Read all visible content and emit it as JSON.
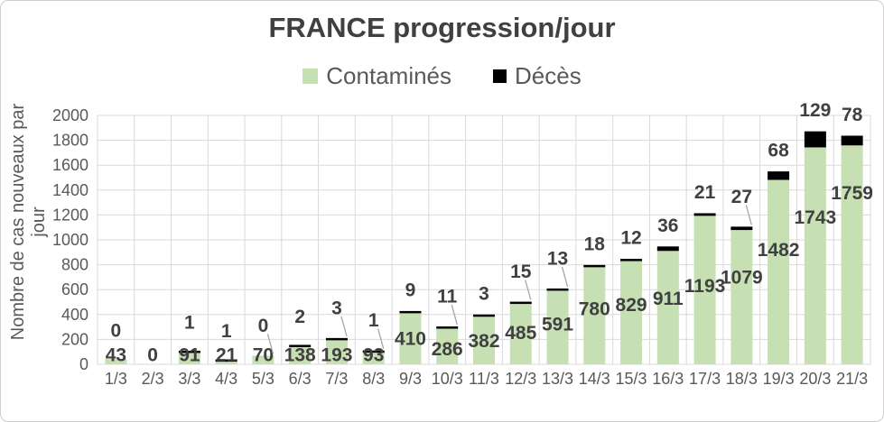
{
  "chart_data": {
    "type": "bar",
    "stacked": true,
    "title": "FRANCE progression/jour",
    "ylabel": "Nombre de cas nouveaux par jour",
    "xlabel": "",
    "ylim": [
      0,
      2000
    ],
    "ytick_step": 200,
    "grid": true,
    "legend_position": "top-center",
    "categories": [
      "1/3",
      "2/3",
      "3/3",
      "4/3",
      "5/3",
      "6/3",
      "7/3",
      "8/3",
      "9/3",
      "10/3",
      "11/3",
      "12/3",
      "13/3",
      "14/3",
      "15/3",
      "16/3",
      "17/3",
      "18/3",
      "19/3",
      "20/3",
      "21/3"
    ],
    "series": [
      {
        "name": "Contaminés",
        "color": "#c6e0b4",
        "values": [
          43,
          0,
          91,
          21,
          70,
          138,
          193,
          93,
          410,
          286,
          382,
          485,
          591,
          780,
          829,
          911,
          1193,
          1079,
          1482,
          1743,
          1759
        ]
      },
      {
        "name": "Décès",
        "color": "#000000",
        "values": [
          0,
          0,
          1,
          1,
          0,
          2,
          3,
          1,
          9,
          11,
          3,
          15,
          13,
          18,
          12,
          36,
          21,
          27,
          68,
          129,
          78
        ]
      }
    ],
    "label_leader_line_categories": [
      "5/3",
      "7/3",
      "8/3",
      "10/3",
      "12/3",
      "13/3",
      "18/3"
    ],
    "hidden_deces_label_categories": [
      "2/3"
    ]
  },
  "colors": {
    "background": "#ffffff",
    "frame_border": "#d0cece",
    "title_text": "#404040",
    "legend_text": "#595959",
    "axis_text": "#595959",
    "data_label_text": "#404040",
    "gridline": "#d9d9d9",
    "leader_line": "#a6a6a6",
    "contamines_fill": "#c6e0b4",
    "deces_fill": "#000000"
  }
}
